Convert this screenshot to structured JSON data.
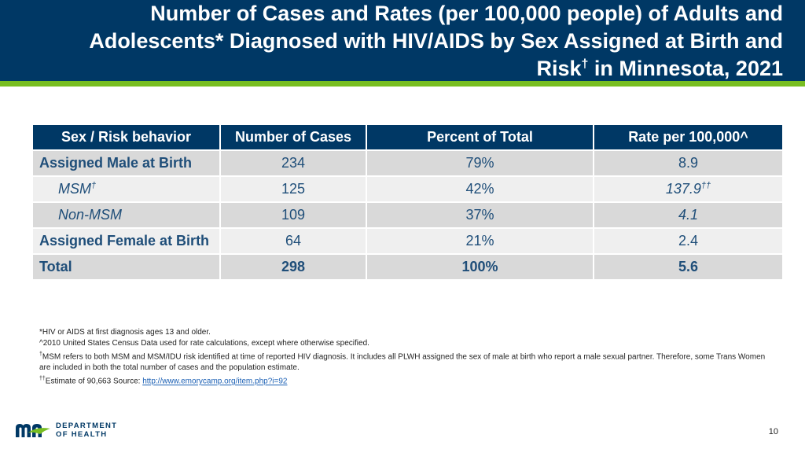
{
  "header": {
    "title_line1": "Number of Cases and Rates (per 100,000 people) of Adults and",
    "title_line2": "Adolescents* Diagnosed with HIV/AIDS by Sex Assigned at Birth and",
    "title_line3": "Risk",
    "title_line3_sup": "†",
    "title_line3_end": " in Minnesota, 2021",
    "colors": {
      "navy": "#003865",
      "green": "#78be21"
    }
  },
  "table": {
    "headers": [
      "Sex / Risk behavior",
      "Number of Cases",
      "Percent of Total",
      "Rate per 100,000^"
    ],
    "rows": [
      {
        "label": "Assigned Male at Birth",
        "label_sup": "",
        "cases": "234",
        "percent": "79%",
        "rate": "8.9",
        "rate_sup": ""
      },
      {
        "label": "MSM",
        "label_sup": "†",
        "cases": "125",
        "percent": "42%",
        "rate": "137.9",
        "rate_sup": "††"
      },
      {
        "label": "Non-MSM",
        "label_sup": "",
        "cases": "109",
        "percent": "37%",
        "rate": "4.1",
        "rate_sup": ""
      },
      {
        "label": "Assigned Female at Birth",
        "label_sup": "",
        "cases": "64",
        "percent": "21%",
        "rate": "2.4",
        "rate_sup": ""
      },
      {
        "label": "Total",
        "label_sup": "",
        "cases": "298",
        "percent": "100%",
        "rate": "5.6",
        "rate_sup": ""
      }
    ]
  },
  "footnotes": {
    "line1": "*HIV or AIDS at first diagnosis ages 13 and older.",
    "line2": "^2010 United States Census Data used for rate calculations, except where otherwise specified.",
    "line3_sup": "†",
    "line3": "MSM refers to both MSM and MSM/IDU risk identified at time of reported HIV diagnosis. It includes all PLWH assigned the sex of male at birth who report a male sexual partner. Therefore, some Trans Women are included in both the total number of cases and the population estimate.",
    "line4_sup": "††",
    "line4_prefix": "Estimate of 90,663 Source: ",
    "line4_link": "http://www.emorycamp.org/item.php?i=92"
  },
  "logo": {
    "line1": "DEPARTMENT",
    "line2": "OF HEALTH",
    "icon": "minnesota-mn-logo-icon"
  },
  "page_number": "10"
}
